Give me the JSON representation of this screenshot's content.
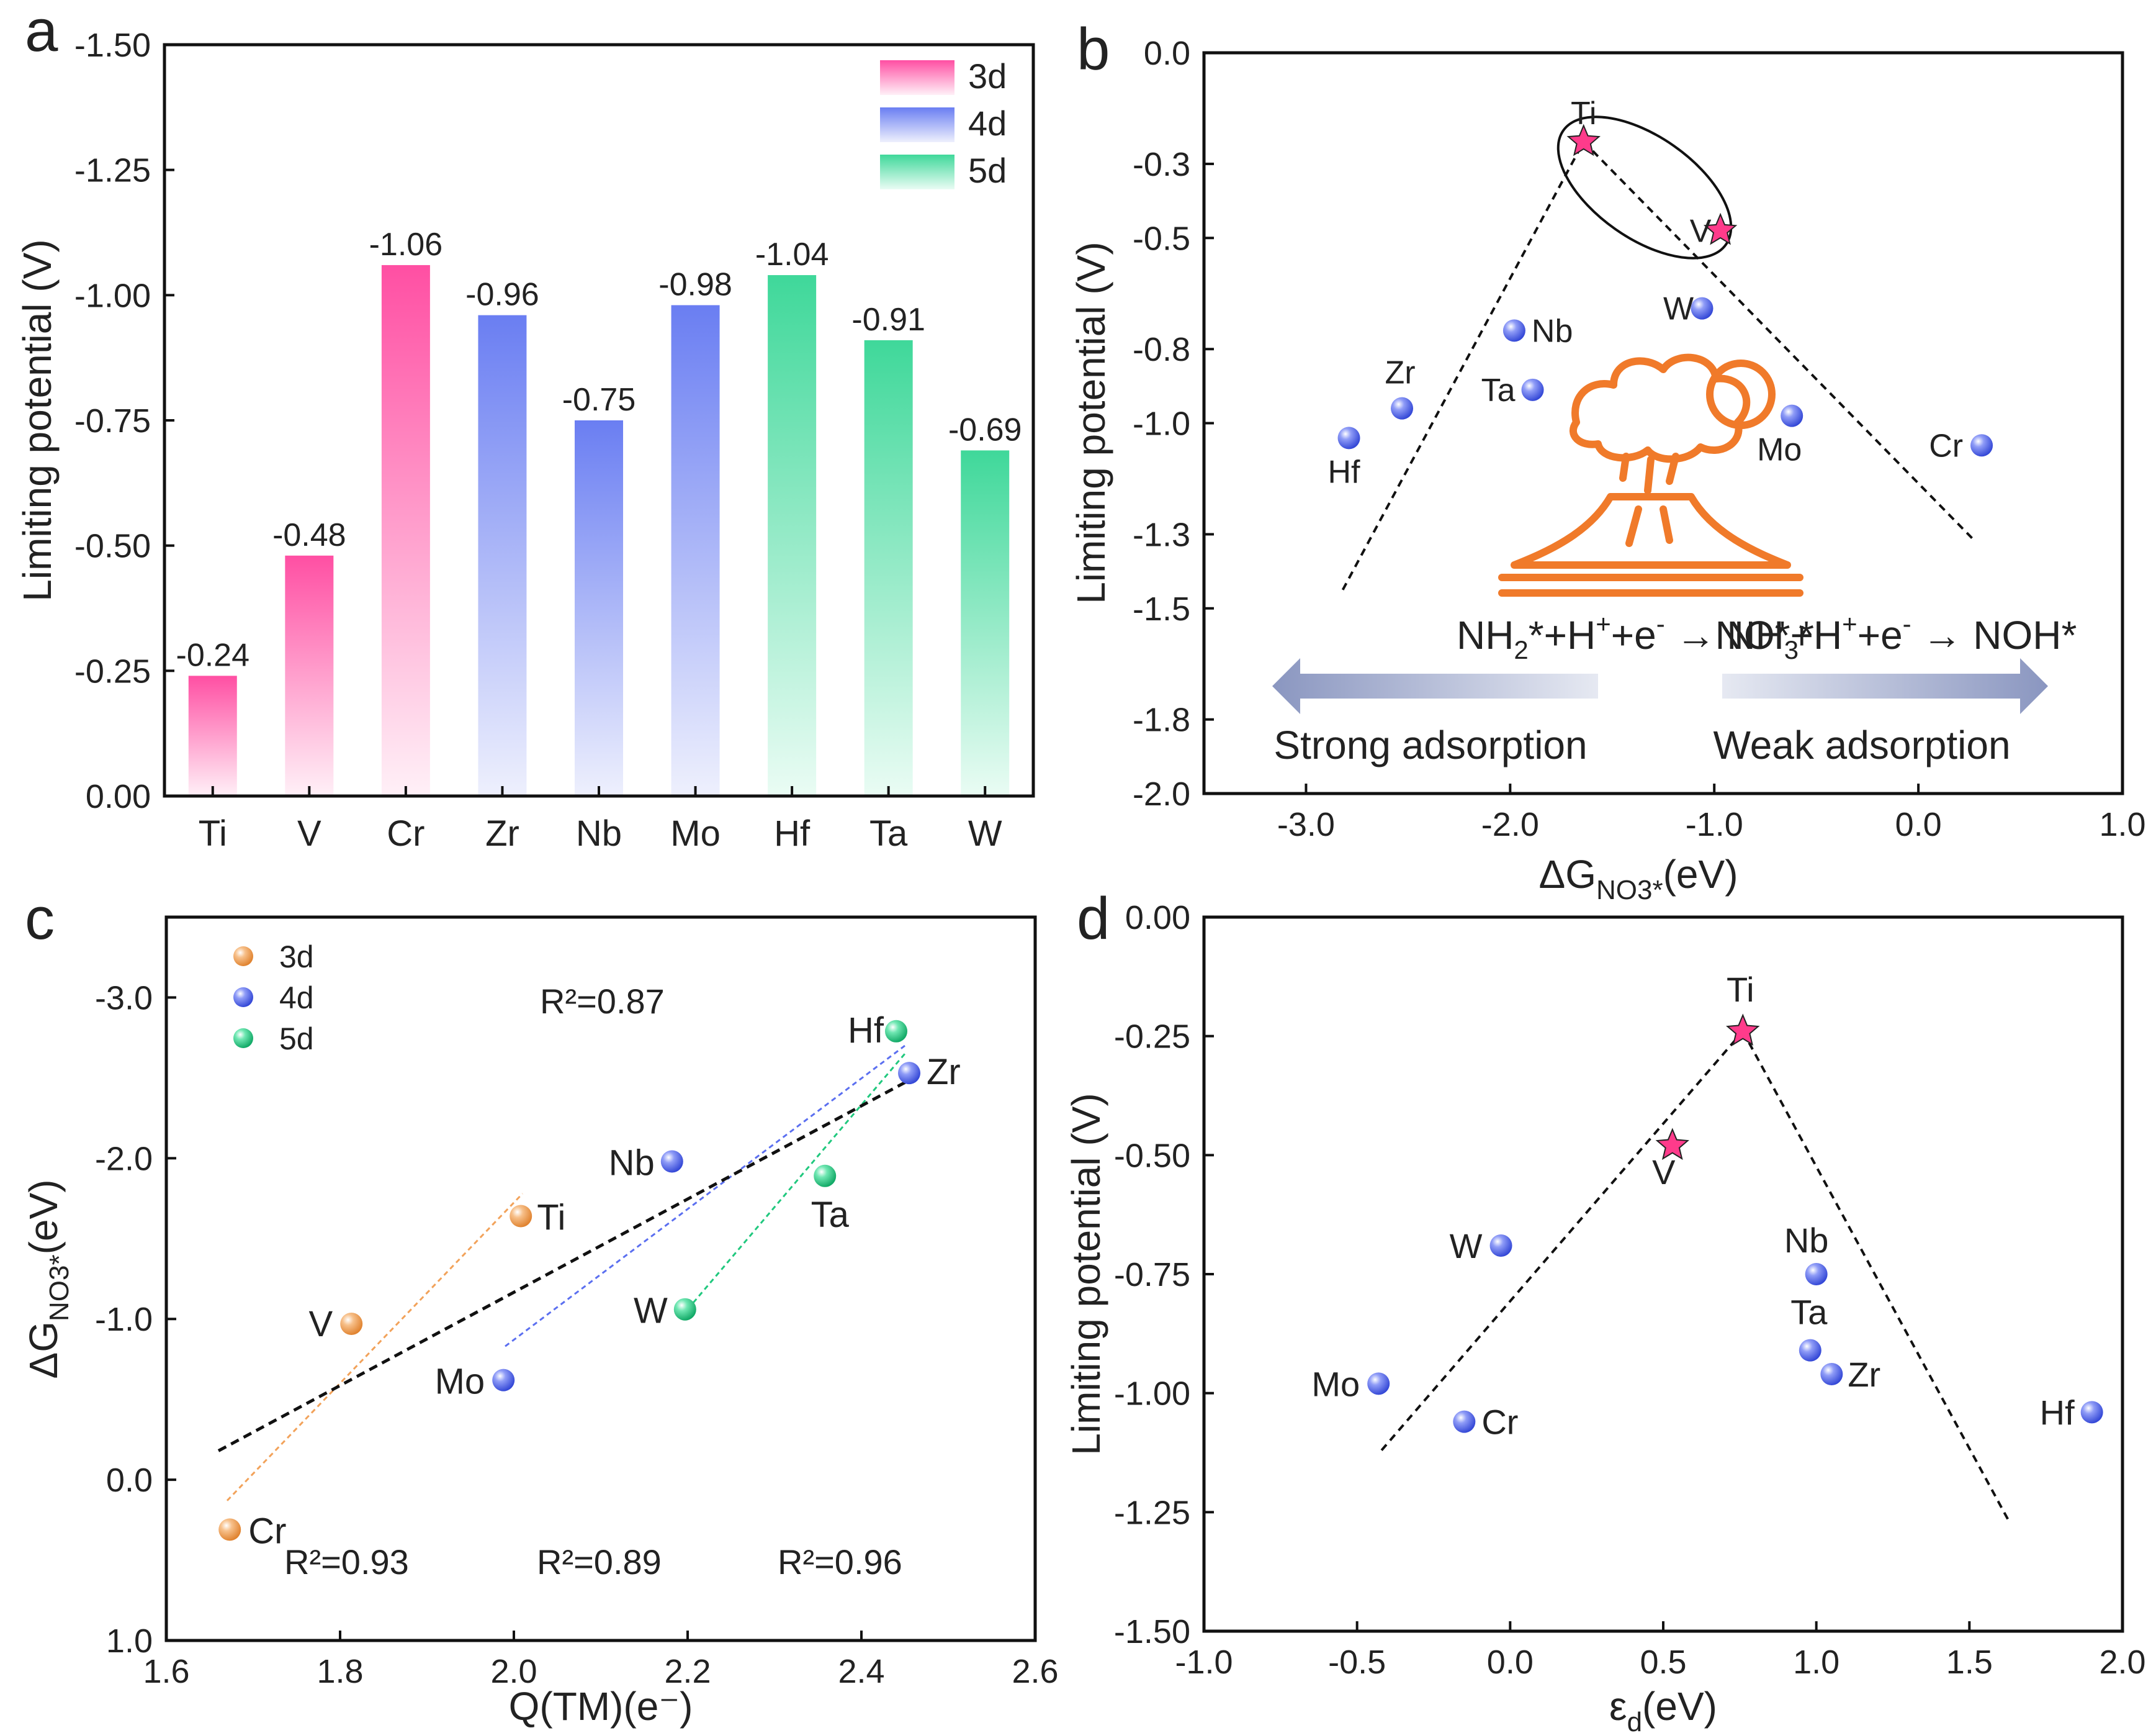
{
  "chart_data": [
    {
      "panel": "a",
      "type": "bar",
      "ylabel": "Limiting potential (V)",
      "ylim": [
        0,
        -1.5
      ],
      "yticks": [
        "0.00",
        "-0.25",
        "-0.50",
        "-0.75",
        "-1.00",
        "-1.25",
        "-1.50"
      ],
      "categories": [
        "Ti",
        "V",
        "Cr",
        "Zr",
        "Nb",
        "Mo",
        "Hf",
        "Ta",
        "W"
      ],
      "values": [
        -0.24,
        -0.48,
        -1.06,
        -0.96,
        -0.75,
        -0.98,
        -1.04,
        -0.91,
        -0.69
      ],
      "value_labels": [
        "-0.24",
        "-0.48",
        "-1.06",
        "-0.96",
        "-0.75",
        "-0.98",
        "-1.04",
        "-0.91",
        "-0.69"
      ],
      "groups": [
        "3d",
        "3d",
        "3d",
        "4d",
        "4d",
        "4d",
        "5d",
        "5d",
        "5d"
      ],
      "legend": [
        "3d",
        "4d",
        "5d"
      ],
      "legend_position": "top-right",
      "colors": {
        "3d": "#ff4fa3",
        "4d": "#6a7ef2",
        "5d": "#3fd89a"
      }
    },
    {
      "panel": "b",
      "type": "scatter",
      "ylabel": "Limiting potential (V)",
      "xlabel_main": "ΔG",
      "xlabel_sub": "NO3*",
      "xlabel_unit": "(eV)",
      "xlim": [
        -3.5,
        1.0
      ],
      "ylim": [
        0.0,
        -2.0
      ],
      "xticks": [
        "-3.0",
        "-2.0",
        "-1.0",
        "0.0",
        "1.0"
      ],
      "yticks": [
        "0.0",
        "-0.3",
        "-0.5",
        "-0.8",
        "-1.0",
        "-1.3",
        "-1.5",
        "-1.8",
        "-2.0"
      ],
      "points": [
        {
          "label": "Ti",
          "x": -1.64,
          "y": -0.24,
          "marker": "star"
        },
        {
          "label": "V",
          "x": -0.97,
          "y": -0.48,
          "marker": "star"
        },
        {
          "label": "W",
          "x": -1.06,
          "y": -0.69,
          "marker": "sphere"
        },
        {
          "label": "Nb",
          "x": -1.98,
          "y": -0.75,
          "marker": "sphere"
        },
        {
          "label": "Zr",
          "x": -2.53,
          "y": -0.96,
          "marker": "sphere"
        },
        {
          "label": "Ta",
          "x": -1.89,
          "y": -0.91,
          "marker": "sphere"
        },
        {
          "label": "Hf",
          "x": -2.79,
          "y": -1.04,
          "marker": "sphere"
        },
        {
          "label": "Mo",
          "x": -0.62,
          "y": -0.98,
          "marker": "sphere"
        },
        {
          "label": "Cr",
          "x": 0.31,
          "y": -1.06,
          "marker": "sphere"
        }
      ],
      "lines": [
        {
          "x": [
            -2.82,
            -1.64
          ],
          "y": [
            -1.45,
            -0.24
          ]
        },
        {
          "x": [
            -1.64,
            0.28
          ],
          "y": [
            -0.24,
            -1.32
          ]
        }
      ],
      "annotations": {
        "left_reaction": "NH2*+H+ +e- → NH3*",
        "right_reaction": "NO*+H+ +e- → NOH*",
        "left_label": "Strong adsorption",
        "right_label": "Weak adsorption"
      },
      "colors": {
        "star": "#ff3b8b",
        "sphere": "#5b6ff0",
        "volcano": "#f07a2a",
        "arrow": "#8a96c0"
      }
    },
    {
      "panel": "c",
      "type": "scatter",
      "xlabel": "Q(TM)(e⁻)",
      "ylabel_main": "ΔG",
      "ylabel_sub": "NO3*",
      "ylabel_unit": "(eV)",
      "xlim": [
        1.6,
        2.6
      ],
      "ylim": [
        1.0,
        -3.5
      ],
      "xticks": [
        "1.6",
        "1.8",
        "2.0",
        "2.2",
        "2.4",
        "2.6"
      ],
      "yticks": [
        "1.0",
        "0.0",
        "-1.0",
        "-2.0",
        "-3.0"
      ],
      "points": [
        {
          "label": "Cr",
          "x": 1.673,
          "y": 0.31,
          "group": "3d"
        },
        {
          "label": "V",
          "x": 1.813,
          "y": -0.97,
          "group": "3d"
        },
        {
          "label": "Ti",
          "x": 2.008,
          "y": -1.64,
          "group": "3d"
        },
        {
          "label": "Mo",
          "x": 1.988,
          "y": -0.62,
          "group": "4d"
        },
        {
          "label": "Nb",
          "x": 2.182,
          "y": -1.98,
          "group": "4d"
        },
        {
          "label": "Zr",
          "x": 2.455,
          "y": -2.53,
          "group": "4d"
        },
        {
          "label": "W",
          "x": 2.197,
          "y": -1.06,
          "group": "5d"
        },
        {
          "label": "Ta",
          "x": 2.358,
          "y": -1.89,
          "group": "5d"
        },
        {
          "label": "Hf",
          "x": 2.44,
          "y": -2.79,
          "group": "5d"
        }
      ],
      "fits": [
        {
          "group": "3d",
          "x": [
            1.67,
            2.01
          ],
          "y": [
            0.13,
            -1.78
          ]
        },
        {
          "group": "4d",
          "x": [
            1.99,
            2.45
          ],
          "y": [
            -0.83,
            -2.7
          ]
        },
        {
          "group": "5d",
          "x": [
            2.2,
            2.45
          ],
          "y": [
            -1.06,
            -2.65
          ]
        },
        {
          "group": "all",
          "x": [
            1.66,
            2.46
          ],
          "y": [
            -0.18,
            -2.5
          ]
        }
      ],
      "legend": [
        "3d",
        "4d",
        "5d"
      ],
      "legend_position": "top-left",
      "r2": {
        "all": "R²=0.87",
        "3d": "R²=0.93",
        "4d": "R²=0.89",
        "5d": "R²=0.96"
      },
      "colors": {
        "3d": "#f2a25a",
        "4d": "#5b6ff0",
        "5d": "#20c87e",
        "all": "#111111"
      }
    },
    {
      "panel": "d",
      "type": "scatter",
      "ylabel": "Limiting potential (V)",
      "xlabel_main": "ε",
      "xlabel_sub": "d",
      "xlabel_unit": "(eV)",
      "xlim": [
        -1.0,
        2.0
      ],
      "ylim": [
        0.0,
        -1.5
      ],
      "xticks": [
        "-1.0",
        "-0.5",
        "0.0",
        "0.5",
        "1.0",
        "1.5",
        "2.0"
      ],
      "yticks": [
        "0.00",
        "-0.25",
        "-0.50",
        "-0.75",
        "-1.00",
        "-1.25",
        "-1.50"
      ],
      "points": [
        {
          "label": "Ti",
          "x": 0.76,
          "y": -0.24,
          "marker": "star"
        },
        {
          "label": "V",
          "x": 0.53,
          "y": -0.48,
          "marker": "star"
        },
        {
          "label": "W",
          "x": -0.03,
          "y": -0.69,
          "marker": "sphere"
        },
        {
          "label": "Nb",
          "x": 1.0,
          "y": -0.75,
          "marker": "sphere"
        },
        {
          "label": "Ta",
          "x": 0.98,
          "y": -0.91,
          "marker": "sphere"
        },
        {
          "label": "Zr",
          "x": 1.05,
          "y": -0.96,
          "marker": "sphere"
        },
        {
          "label": "Mo",
          "x": -0.43,
          "y": -0.98,
          "marker": "sphere"
        },
        {
          "label": "Cr",
          "x": -0.15,
          "y": -1.06,
          "marker": "sphere"
        },
        {
          "label": "Hf",
          "x": 1.9,
          "y": -1.04,
          "marker": "sphere"
        }
      ],
      "lines": [
        {
          "x": [
            -0.42,
            0.76
          ],
          "y": [
            -1.12,
            -0.24
          ]
        },
        {
          "x": [
            0.76,
            1.63
          ],
          "y": [
            -0.24,
            -1.27
          ]
        }
      ],
      "colors": {
        "star": "#ff3b8b",
        "sphere": "#5b6ff0"
      }
    }
  ],
  "panel_letters": [
    "a",
    "b",
    "c",
    "d"
  ]
}
